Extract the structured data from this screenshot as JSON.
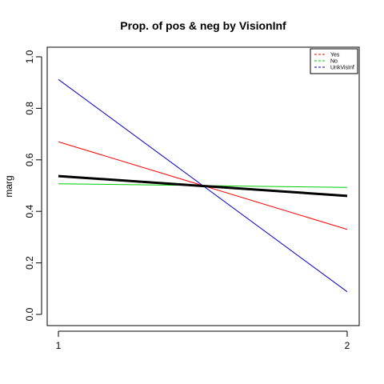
{
  "chart_data": {
    "type": "line",
    "title": "Prop. of pos & neg by VisionInf",
    "xlabel": "",
    "ylabel": "marg",
    "x": [
      1,
      2
    ],
    "x_ticks": [
      "1",
      "2"
    ],
    "xlim": [
      1,
      2
    ],
    "ylim": [
      0,
      1
    ],
    "y_ticks": [
      "0.0",
      "0.2",
      "0.4",
      "0.6",
      "0.8",
      "1.0"
    ],
    "grid": false,
    "legend": "top-right",
    "overall": {
      "values": [
        0.537,
        0.46
      ],
      "color": "#000000"
    },
    "series": [
      {
        "name": "Yes",
        "values": [
          0.67,
          0.33
        ],
        "color": "#ff0000"
      },
      {
        "name": "No",
        "values": [
          0.507,
          0.493
        ],
        "color": "#00cc00"
      },
      {
        "name": "UnkVisInf",
        "values": [
          0.912,
          0.088
        ],
        "color": "#0000cc"
      }
    ]
  }
}
